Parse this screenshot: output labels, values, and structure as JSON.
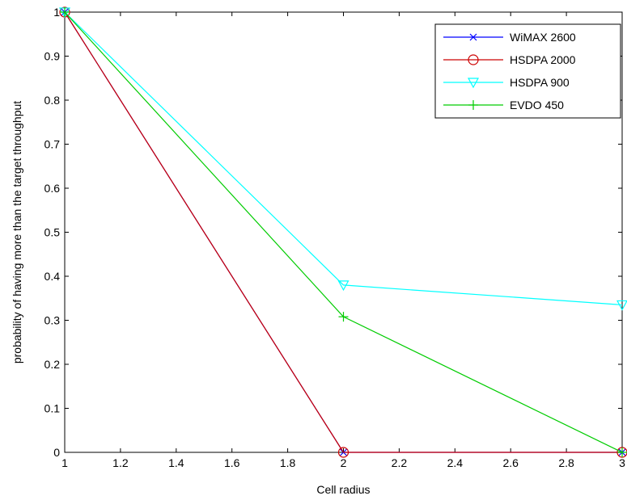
{
  "chart_data": {
    "type": "line",
    "title": "",
    "xlabel": "Cell radius",
    "ylabel": "probability of having more than the target throughput",
    "xlim": [
      1,
      3
    ],
    "ylim": [
      0,
      1
    ],
    "x_ticks": [
      "1",
      "1.2",
      "1.4",
      "1.6",
      "1.8",
      "2",
      "2.2",
      "2.4",
      "2.6",
      "2.8",
      "3"
    ],
    "y_ticks": [
      "0",
      "0.1",
      "0.2",
      "0.3",
      "0.4",
      "0.5",
      "0.6",
      "0.7",
      "0.8",
      "0.9",
      "1"
    ],
    "grid": false,
    "legend_position": "top-right",
    "x": [
      1,
      2,
      3
    ],
    "series": [
      {
        "name": "WiMAX 2600",
        "values": [
          1,
          0,
          0
        ],
        "color": "#0000ff",
        "marker": "x"
      },
      {
        "name": "HSDPA 2000",
        "values": [
          1,
          0,
          0
        ],
        "color": "#cc0000",
        "marker": "circle"
      },
      {
        "name": "HSDPA 900",
        "values": [
          1,
          0.38,
          0.335
        ],
        "color": "#00ffff",
        "marker": "triangle-down"
      },
      {
        "name": "EVDO 450",
        "values": [
          1,
          0.308,
          0
        ],
        "color": "#00cc00",
        "marker": "plus"
      }
    ]
  }
}
